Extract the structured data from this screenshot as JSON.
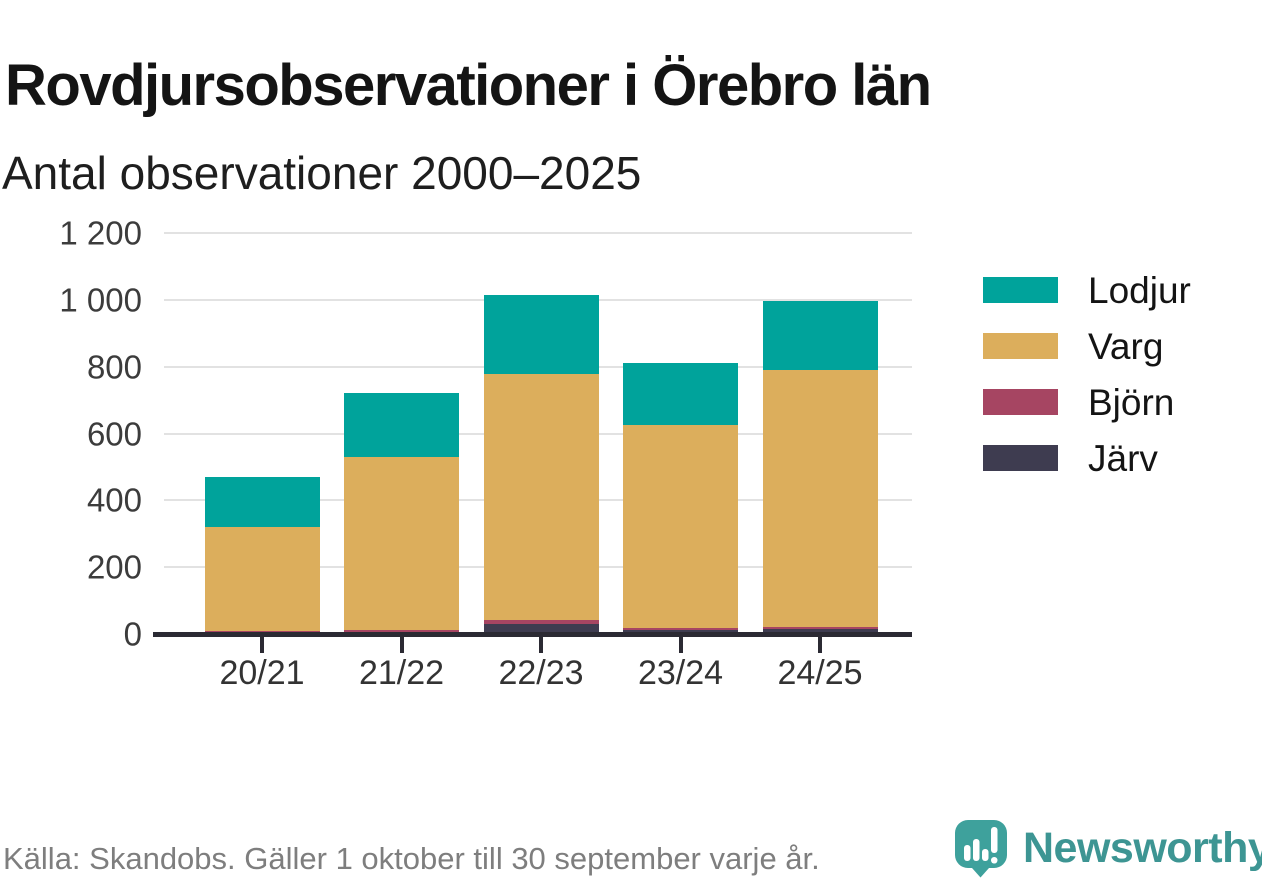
{
  "title": "Rovdjursobservationer i Örebro län",
  "subtitle": "Antal observationer 2000–2025",
  "source": "Källa: Skandobs. Gäller 1 oktober till 30 september varje år.",
  "brand": {
    "name": "Newsworthy",
    "icon": "newsworthy-bubble-bar-chart-icon",
    "wordmark_color": "#3d9593",
    "icon_color": "#3ea19c"
  },
  "colors": {
    "lodjur": "#00a39b",
    "varg": "#dcae5c",
    "bjorn": "#a64562",
    "jarv": "#3e3c50",
    "axis": "#2b2a33",
    "gridline": "#e2e2e2",
    "tick_label": "#3c3c3c",
    "title_text": "#141414",
    "source_text": "#7e7e7e"
  },
  "chart_data": {
    "type": "bar",
    "stacked": true,
    "title": "Rovdjursobservationer i Örebro län",
    "subtitle": "Antal observationer 2000–2025",
    "xlabel": "",
    "ylabel": "",
    "categories": [
      "20/21",
      "21/22",
      "22/23",
      "23/24",
      "24/25"
    ],
    "series": [
      {
        "name": "Lodjur",
        "color": "#00a39b",
        "values": [
          150,
          190,
          238,
          185,
          206
        ]
      },
      {
        "name": "Varg",
        "color": "#dcae5c",
        "values": [
          312,
          517,
          735,
          608,
          770
        ]
      },
      {
        "name": "Björn",
        "color": "#a64562",
        "values": [
          6,
          8,
          11,
          4,
          4
        ]
      },
      {
        "name": "Järv",
        "color": "#3e3c50",
        "values": [
          2,
          5,
          31,
          13,
          16
        ]
      }
    ],
    "totals": [
      470,
      720,
      1015,
      810,
      996
    ],
    "stack_order_bottom_to_top": [
      "Järv",
      "Björn",
      "Varg",
      "Lodjur"
    ],
    "ylim": [
      0,
      1200
    ],
    "ytick_values": [
      0,
      200,
      400,
      600,
      800,
      1000,
      1200
    ],
    "ytick_labels": [
      "0",
      "200",
      "400",
      "600",
      "800",
      "1 000",
      "1 200"
    ],
    "grid": "horizontal",
    "legend_position": "right"
  }
}
